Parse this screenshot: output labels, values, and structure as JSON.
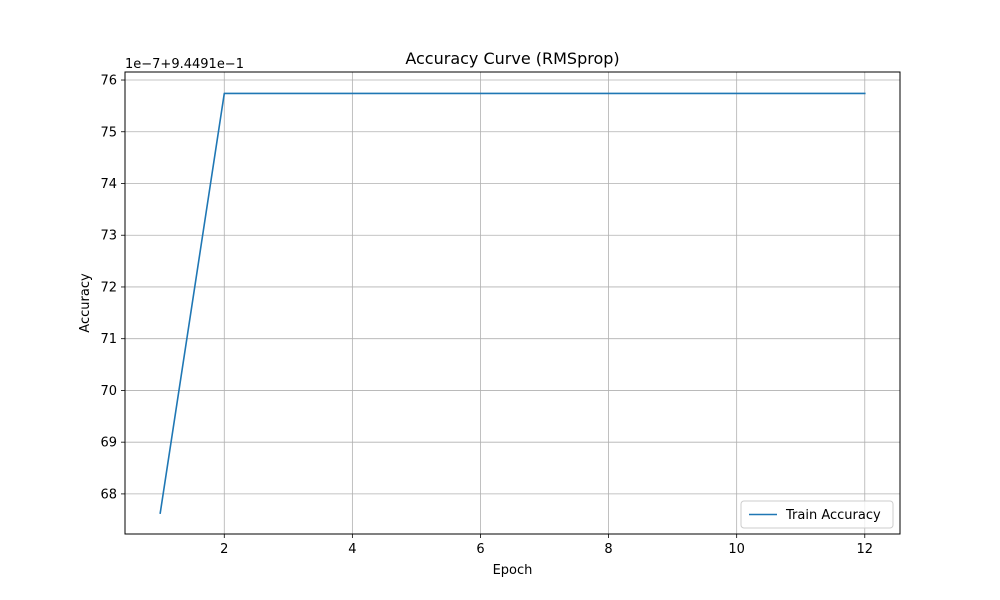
{
  "chart_data": {
    "type": "line",
    "title": "Accuracy Curve (RMSprop)",
    "xlabel": "Epoch",
    "ylabel": "Accuracy",
    "y_offset_label": "1e−7+9.4491e−1",
    "x": [
      1,
      2,
      3,
      4,
      5,
      6,
      7,
      8,
      9,
      10,
      11,
      12
    ],
    "series": [
      {
        "name": "Train Accuracy",
        "color": "#1f77b4",
        "values": [
          67.63,
          75.74,
          75.74,
          75.74,
          75.74,
          75.74,
          75.74,
          75.74,
          75.74,
          75.74,
          75.74,
          75.74
        ]
      }
    ],
    "xlim": [
      0.45,
      12.55
    ],
    "ylim": [
      67.225,
      76.155
    ],
    "xticks": [
      2,
      4,
      6,
      8,
      10,
      12
    ],
    "yticks": [
      68,
      69,
      70,
      71,
      72,
      73,
      74,
      75,
      76
    ],
    "grid": true,
    "legend_position": "lower-right",
    "grid_color": "#b0b0b0"
  }
}
